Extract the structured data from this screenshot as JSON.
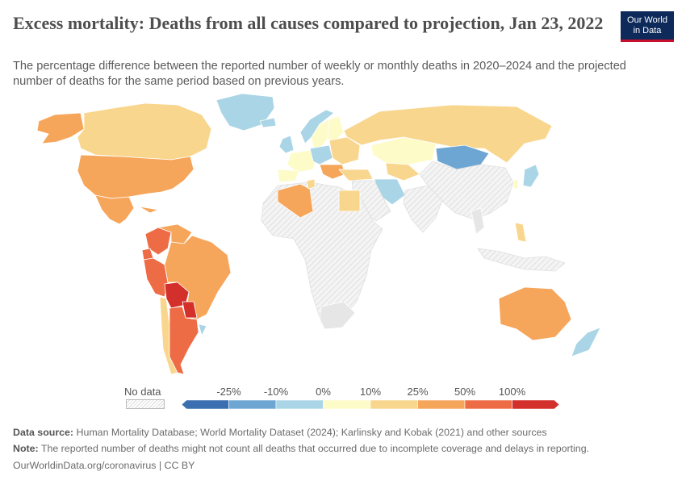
{
  "title": "Excess mortality: Deaths from all causes compared to projection, Jan 23, 2022",
  "subtitle": "The percentage difference between the reported number of weekly or monthly deaths in 2020–2024 and the projected number of deaths for the same period based on previous years.",
  "logo": {
    "line1": "Our World",
    "line2": "in Data"
  },
  "legend": {
    "no_data_label": "No data",
    "bins": [
      {
        "color": "#3b6fb0"
      },
      {
        "color": "#6ea6d3"
      },
      {
        "color": "#a9d5e6"
      },
      {
        "color": "#fdfbc8"
      },
      {
        "color": "#f9d68e"
      },
      {
        "color": "#f6a65b"
      },
      {
        "color": "#ee6c45"
      },
      {
        "color": "#d32f2b"
      }
    ],
    "ticks": [
      "-25%",
      "-10%",
      "0%",
      "10%",
      "25%",
      "50%",
      "100%"
    ]
  },
  "footer": {
    "source_label": "Data source:",
    "source_text": "Human Mortality Database; World Mortality Dataset (2024); Karlinsky and Kobak (2021) and other sources",
    "note_label": "Note:",
    "note_text": "The reported number of deaths might not count all deaths that occurred due to incomplete coverage and delays in reporting.",
    "url": "OurWorldinData.org/coronavirus | CC BY"
  },
  "regions": [
    {
      "name": "Canada",
      "color": "#f9d68e"
    },
    {
      "name": "Alaska",
      "color": "#f6a65b"
    },
    {
      "name": "United States",
      "color": "#f6a65b"
    },
    {
      "name": "Greenland",
      "color": "#a9d5e6"
    },
    {
      "name": "Mexico",
      "color": "#f6a65b"
    },
    {
      "name": "Cuba",
      "color": "#f6a65b"
    },
    {
      "name": "Colombia",
      "color": "#ee6c45"
    },
    {
      "name": "Venezuela",
      "color": "#f6a65b"
    },
    {
      "name": "Ecuador",
      "color": "#ee6c45"
    },
    {
      "name": "Peru",
      "color": "#ee6c45"
    },
    {
      "name": "Brazil",
      "color": "#f6a65b"
    },
    {
      "name": "Bolivia",
      "color": "#d32f2b"
    },
    {
      "name": "Paraguay",
      "color": "#d32f2b"
    },
    {
      "name": "Chile",
      "color": "#f9d68e"
    },
    {
      "name": "Argentina",
      "color": "#ee6c45"
    },
    {
      "name": "Uruguay",
      "color": "#a9d5e6"
    },
    {
      "name": "Iceland",
      "color": "#a9d5e6"
    },
    {
      "name": "Norway",
      "color": "#a9d5e6"
    },
    {
      "name": "Sweden",
      "color": "#fdfbc8"
    },
    {
      "name": "Finland",
      "color": "#fdfbc8"
    },
    {
      "name": "United Kingdom",
      "color": "#a9d5e6"
    },
    {
      "name": "Western Europe",
      "color": "#fdfbc8"
    },
    {
      "name": "Spain",
      "color": "#fdfbc8"
    },
    {
      "name": "Central Europe",
      "color": "#a9d5e6"
    },
    {
      "name": "Eastern Europe",
      "color": "#f9d68e"
    },
    {
      "name": "Balkans",
      "color": "#f6a65b"
    },
    {
      "name": "Turkey",
      "color": "#f9d68e"
    },
    {
      "name": "Russia",
      "color": "#f9d68e"
    },
    {
      "name": "Kazakhstan",
      "color": "#fdfbc8"
    },
    {
      "name": "Central Asia",
      "color": "#f9d68e"
    },
    {
      "name": "Mongolia",
      "color": "#6ea6d3"
    },
    {
      "name": "China",
      "color": "#e6e6e6"
    },
    {
      "name": "Japan",
      "color": "#a9d5e6"
    },
    {
      "name": "South Korea",
      "color": "#fdfbc8"
    },
    {
      "name": "Iran",
      "color": "#a9d5e6"
    },
    {
      "name": "Middle East",
      "color": "#e6e6e6"
    },
    {
      "name": "India",
      "color": "#e6e6e6"
    },
    {
      "name": "Algeria",
      "color": "#f6a65b"
    },
    {
      "name": "Tunisia",
      "color": "#f9d68e"
    },
    {
      "name": "Egypt",
      "color": "#f9d68e"
    },
    {
      "name": "Africa",
      "color": "#e6e6e6"
    },
    {
      "name": "South Africa",
      "color": "#f9d68e"
    },
    {
      "name": "Thailand",
      "color": "#fdfbc8"
    },
    {
      "name": "Philippines",
      "color": "#f9d68e"
    },
    {
      "name": "Indonesia",
      "color": "#e6e6e6"
    },
    {
      "name": "Australia",
      "color": "#f6a65b"
    },
    {
      "name": "New Zealand",
      "color": "#a9d5e6"
    }
  ]
}
